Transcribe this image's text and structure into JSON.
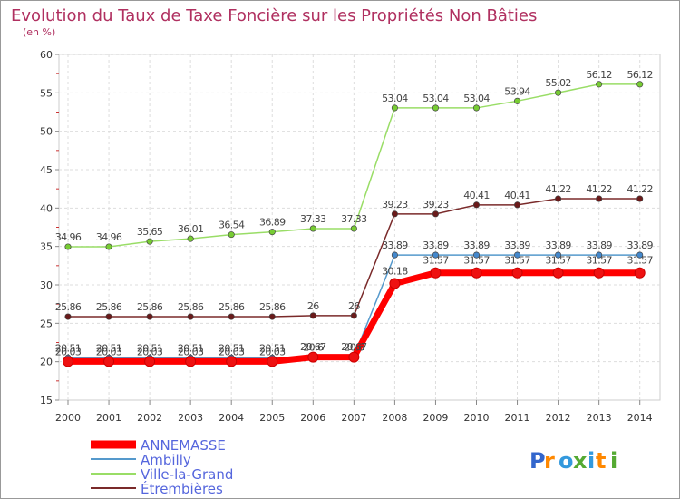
{
  "chart_data": {
    "type": "line",
    "title": "Evolution du Taux de Taxe Foncière sur les Propriétés Non Bâties",
    "unit_label": "(en %)",
    "x": [
      "2000",
      "2001",
      "2002",
      "2003",
      "2004",
      "2005",
      "2006",
      "2007",
      "2008",
      "2009",
      "2010",
      "2011",
      "2012",
      "2013",
      "2014"
    ],
    "ylim": [
      15,
      60
    ],
    "yticks": [
      15,
      20,
      25,
      30,
      35,
      40,
      45,
      50,
      55,
      60
    ],
    "grid": true,
    "series": [
      {
        "name": "Ville-la-Grand",
        "color": "#99dd66",
        "point_color": "#77cc33",
        "values": [
          34.96,
          34.96,
          35.65,
          36.01,
          36.54,
          36.89,
          37.33,
          37.33,
          53.04,
          53.04,
          53.04,
          53.94,
          55.02,
          56.12,
          56.12
        ],
        "labels": [
          "34.96",
          "34.96",
          "35.65",
          "36.01",
          "36.54",
          "36.89",
          "37.33",
          "37.33",
          "53.04",
          "53.04",
          "53.04",
          "53.94",
          "55.02",
          "56.12",
          "56.12"
        ]
      },
      {
        "name": "Étrembières",
        "color": "#7a2a2a",
        "point_color": "#6a1a1a",
        "values": [
          25.86,
          25.86,
          25.86,
          25.86,
          25.86,
          25.86,
          26,
          26,
          39.23,
          39.23,
          40.41,
          40.41,
          41.22,
          41.22,
          41.22
        ],
        "labels": [
          "25.86",
          "25.86",
          "25.86",
          "25.86",
          "25.86",
          "25.86",
          "26",
          "26",
          "39.23",
          "39.23",
          "40.41",
          "40.41",
          "41.22",
          "41.22",
          "41.22"
        ]
      },
      {
        "name": "Ambilly",
        "color": "#5599cc",
        "point_color": "#4488cc",
        "values": [
          20.51,
          20.51,
          20.51,
          20.51,
          20.51,
          20.51,
          20.67,
          20.67,
          33.89,
          33.89,
          33.89,
          33.89,
          33.89,
          33.89,
          33.89
        ],
        "labels": [
          "20.51",
          "20.51",
          "20.51",
          "20.51",
          "20.51",
          "20.51",
          "20.67",
          "20.67",
          "33.89",
          "33.89",
          "33.89",
          "33.89",
          "33.89",
          "33.89",
          "33.89"
        ]
      },
      {
        "name": "ANNEMASSE",
        "color": "#ff0000",
        "point_color": "#ee1111",
        "values": [
          20.03,
          20.03,
          20.03,
          20.03,
          20.03,
          20.03,
          20.6,
          20.6,
          30.18,
          31.57,
          31.57,
          31.57,
          31.57,
          31.57,
          31.57
        ],
        "labels": [
          "20.03",
          "20.03",
          "20.03",
          "20.03",
          "20.03",
          "20.03",
          "20.6",
          "20.6",
          "30.18",
          "31.57",
          "31.57",
          "31.57",
          "31.57",
          "31.57",
          "31.57"
        ]
      }
    ],
    "legend": [
      "ANNEMASSE",
      "Ambilly",
      "Ville-la-Grand",
      "Étrembières"
    ]
  },
  "branding": {
    "logo_text": "Proxiti"
  }
}
